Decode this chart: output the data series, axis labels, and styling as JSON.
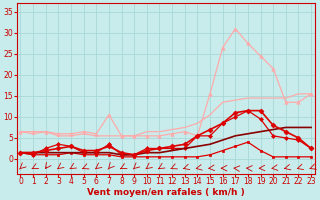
{
  "xlabel": "Vent moyen/en rafales ( km/h )",
  "bg_color": "#c8ecec",
  "grid_color": "#a8d8d8",
  "x_ticks": [
    0,
    1,
    2,
    3,
    4,
    5,
    6,
    7,
    8,
    9,
    10,
    11,
    12,
    13,
    14,
    15,
    16,
    17,
    18,
    19,
    20,
    21,
    22,
    23
  ],
  "y_ticks": [
    0,
    5,
    10,
    15,
    20,
    25,
    30,
    35
  ],
  "xlim": [
    -0.3,
    23.3
  ],
  "ylim": [
    -3.5,
    37
  ],
  "series": [
    {
      "x": [
        0,
        1,
        2,
        3,
        4,
        5,
        6,
        7,
        8,
        9,
        10,
        11,
        12,
        13,
        14,
        15,
        16,
        17,
        18,
        19,
        20,
        21,
        22,
        23
      ],
      "y": [
        6.5,
        6.0,
        6.5,
        5.5,
        5.5,
        6.0,
        5.5,
        5.5,
        5.5,
        5.5,
        6.5,
        6.5,
        7.0,
        7.5,
        8.5,
        10.5,
        13.5,
        14.0,
        14.5,
        14.5,
        14.5,
        14.5,
        15.5,
        15.5
      ],
      "color": "#ffaaaa",
      "linewidth": 0.9,
      "marker": null
    },
    {
      "x": [
        0,
        1,
        2,
        3,
        4,
        5,
        6,
        7,
        8,
        9,
        10,
        11,
        12,
        13,
        14,
        15,
        16,
        17,
        18,
        19,
        20,
        21,
        22,
        23
      ],
      "y": [
        6.5,
        6.5,
        6.5,
        6.0,
        6.0,
        6.5,
        6.0,
        10.5,
        5.5,
        5.5,
        5.5,
        5.5,
        6.0,
        6.5,
        5.5,
        15.5,
        26.5,
        31.0,
        27.5,
        24.5,
        21.5,
        13.5,
        13.5,
        15.5
      ],
      "color": "#ffaaaa",
      "linewidth": 0.9,
      "marker": "^",
      "markersize": 2.5
    },
    {
      "x": [
        0,
        1,
        2,
        3,
        4,
        5,
        6,
        7,
        8,
        9,
        10,
        11,
        12,
        13,
        14,
        15,
        16,
        17,
        18,
        19,
        20,
        21,
        22,
        23
      ],
      "y": [
        1.5,
        1.0,
        1.0,
        1.0,
        1.5,
        1.0,
        1.0,
        1.0,
        0.5,
        0.5,
        0.5,
        0.5,
        0.5,
        0.5,
        0.5,
        1.0,
        2.0,
        3.0,
        4.0,
        2.0,
        0.5,
        0.5,
        0.5,
        0.5
      ],
      "color": "#dd0000",
      "linewidth": 0.9,
      "marker": "s",
      "markersize": 2.0
    },
    {
      "x": [
        0,
        1,
        2,
        3,
        4,
        5,
        6,
        7,
        8,
        9,
        10,
        11,
        12,
        13,
        14,
        15,
        16,
        17,
        18,
        19,
        20,
        21,
        22,
        23
      ],
      "y": [
        1.5,
        1.0,
        2.5,
        3.5,
        3.0,
        1.5,
        1.5,
        3.5,
        1.0,
        1.0,
        2.5,
        2.5,
        2.5,
        2.5,
        5.5,
        5.5,
        8.5,
        10.0,
        11.5,
        9.5,
        5.5,
        5.0,
        4.5,
        2.5
      ],
      "color": "#dd0000",
      "linewidth": 0.9,
      "marker": "D",
      "markersize": 2.0
    },
    {
      "x": [
        0,
        1,
        2,
        3,
        4,
        5,
        6,
        7,
        8,
        9,
        10,
        11,
        12,
        13,
        14,
        15,
        16,
        17,
        18,
        19,
        20,
        21,
        22,
        23
      ],
      "y": [
        1.5,
        1.5,
        1.5,
        1.5,
        1.5,
        1.5,
        1.5,
        1.5,
        1.0,
        1.0,
        1.5,
        1.5,
        2.0,
        2.5,
        3.0,
        3.5,
        4.5,
        5.5,
        6.0,
        6.5,
        7.0,
        7.5,
        7.5,
        7.5
      ],
      "color": "#880000",
      "linewidth": 1.2,
      "marker": null
    },
    {
      "x": [
        0,
        1,
        2,
        3,
        4,
        5,
        6,
        7,
        8,
        9,
        10,
        11,
        12,
        13,
        14,
        15,
        16,
        17,
        18,
        19,
        20,
        21,
        22,
        23
      ],
      "y": [
        1.5,
        1.5,
        2.0,
        2.5,
        3.0,
        2.0,
        2.0,
        3.0,
        1.5,
        1.0,
        2.0,
        2.5,
        3.0,
        3.5,
        5.5,
        7.0,
        8.5,
        11.0,
        11.5,
        11.5,
        8.0,
        6.5,
        5.0,
        2.5
      ],
      "color": "#dd0000",
      "linewidth": 1.2,
      "marker": "D",
      "markersize": 2.5
    }
  ],
  "tick_fontsize": 5.5,
  "label_fontsize": 6.5,
  "wind_angles_deg": [
    210,
    225,
    200,
    215,
    220,
    230,
    215,
    205,
    225,
    210,
    215,
    220,
    230,
    240,
    250,
    260,
    270,
    280,
    275,
    265,
    255,
    245,
    240,
    235
  ]
}
